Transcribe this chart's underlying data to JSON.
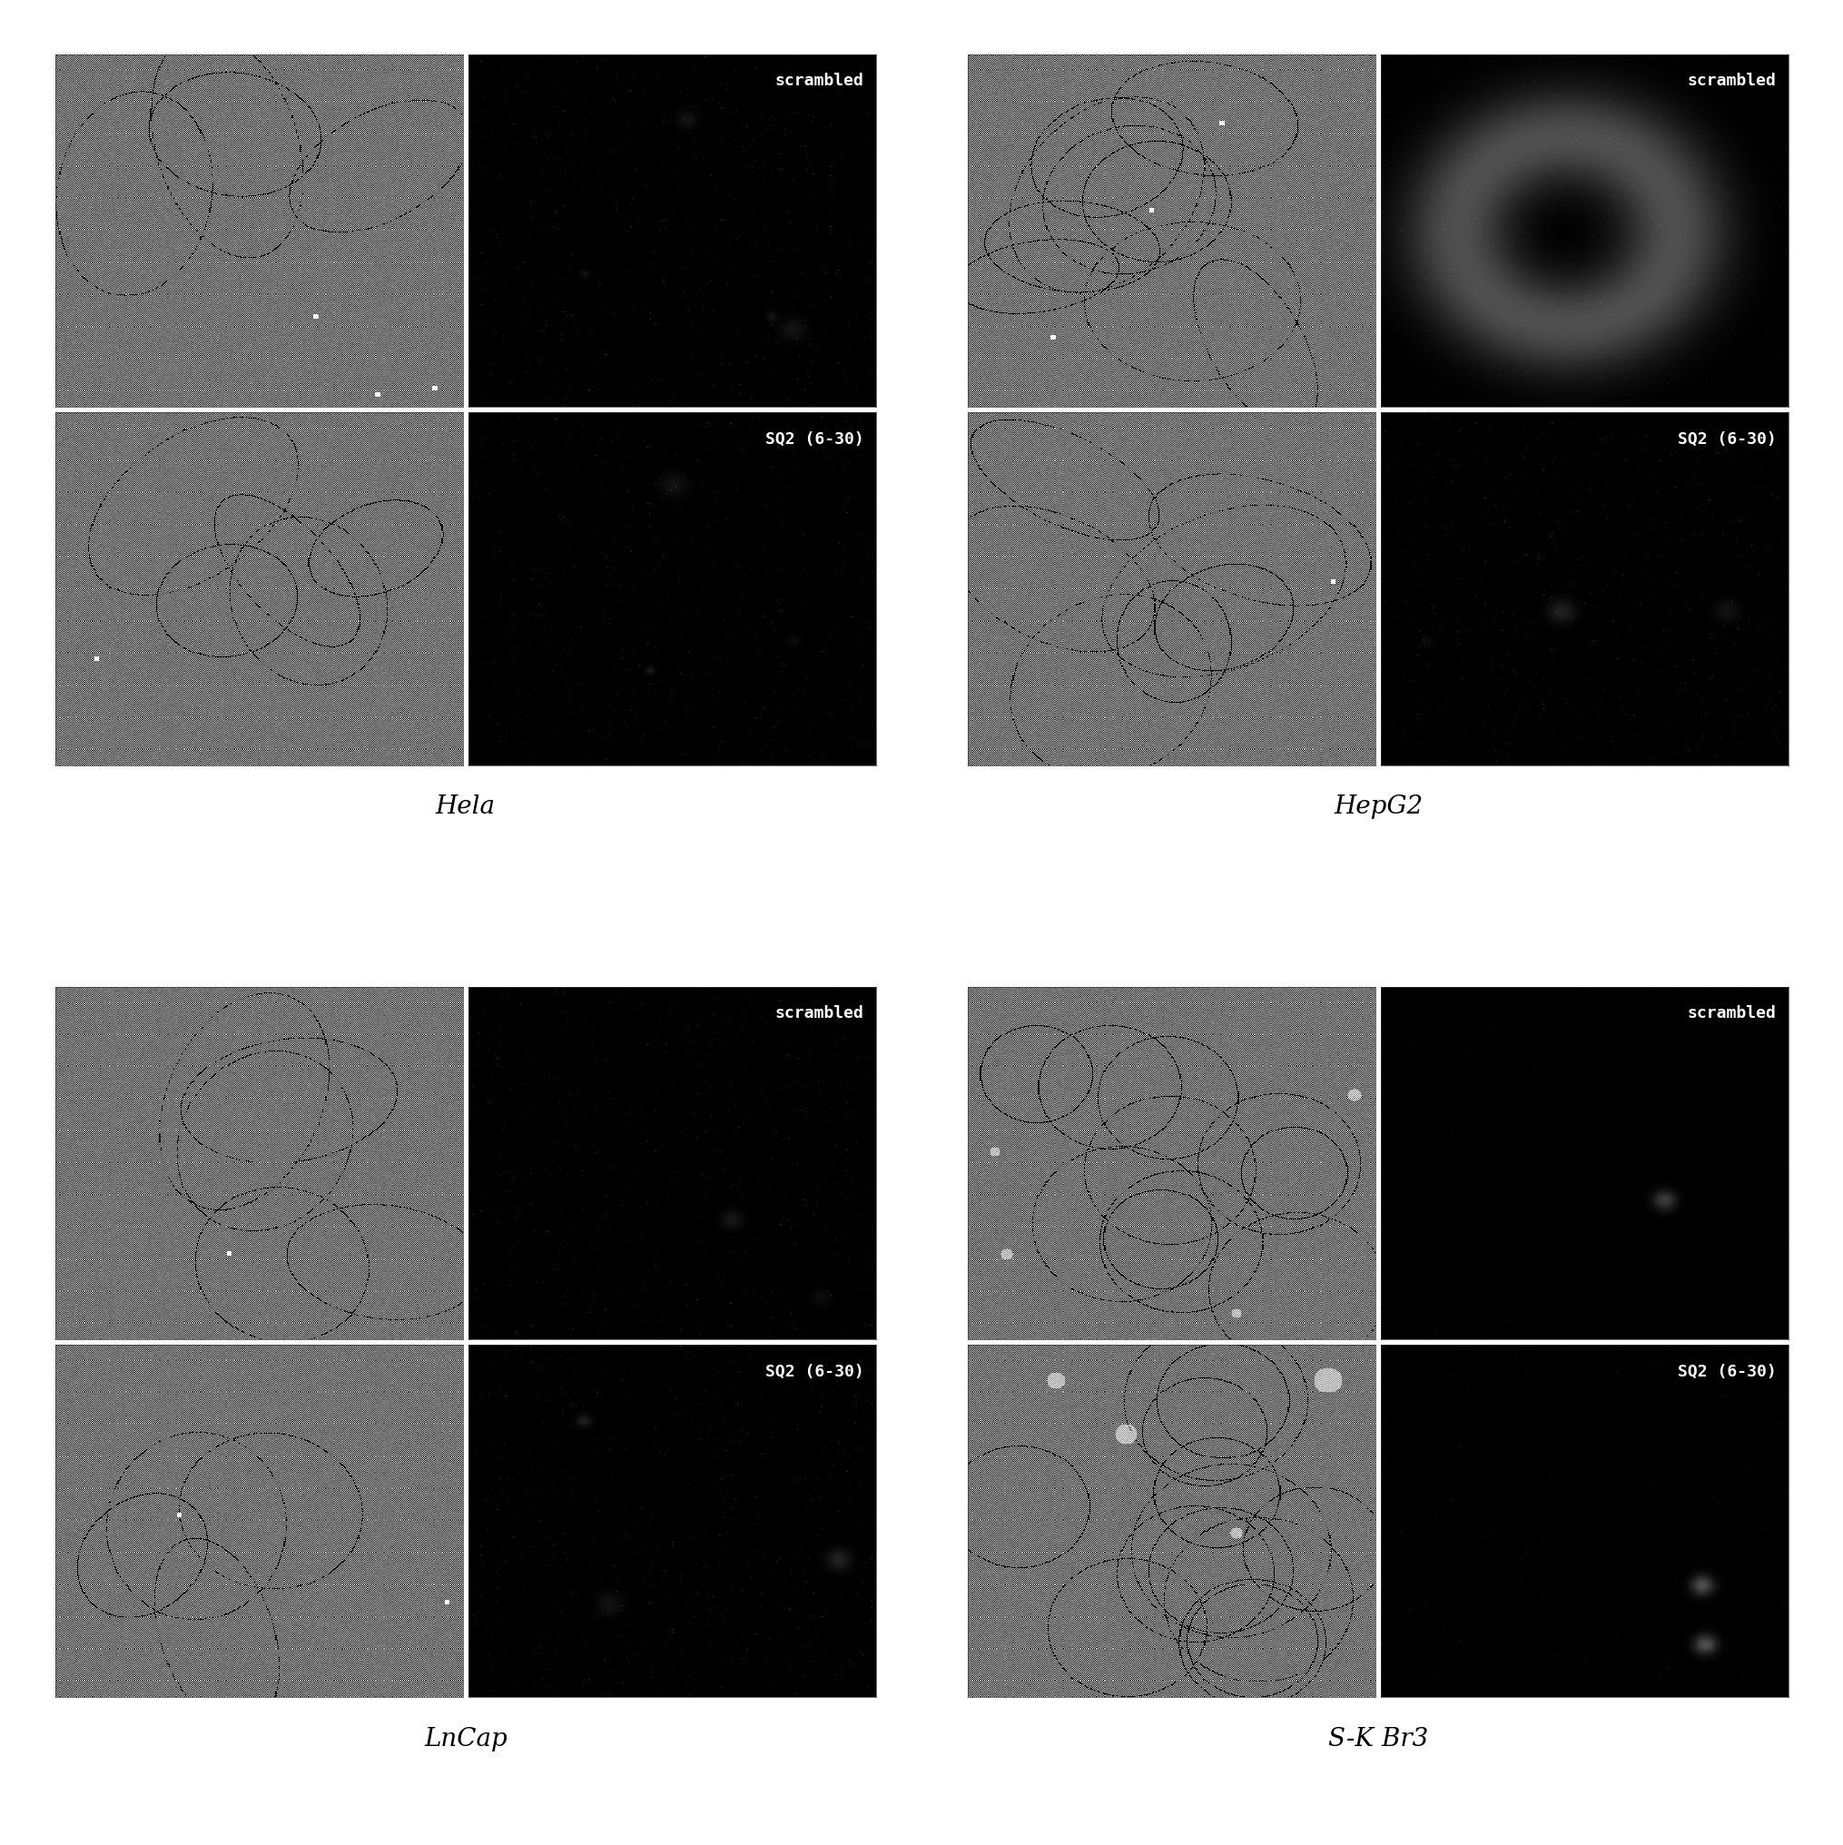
{
  "panel_labels": [
    "Hela",
    "HepG2",
    "LnCap",
    "S-K Br3"
  ],
  "fluorescence_labels": [
    "scrambled",
    "SQ2 (6-30)"
  ],
  "background_color": "#ffffff",
  "annotation_fontsize": 13,
  "panel_label_fontsize": 20,
  "annotation_color": "#ffffff"
}
